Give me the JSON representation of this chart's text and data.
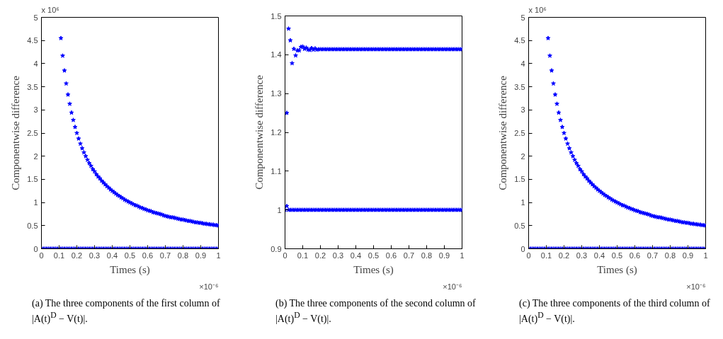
{
  "chart_data": [
    {
      "type": "scatter",
      "xlabel": "Times (s)",
      "ylabel": "Componentwise difference",
      "annotations": [
        "(a) The three components of the first column of |A(t)$^{D}$ − V(t)|.",
        "×10⁻⁶",
        "x 10⁶"
      ],
      "marker": "star",
      "grid": false,
      "xlim": [
        0,
        1
      ],
      "ylim": [
        0,
        5
      ],
      "xticks": [
        0,
        0.1,
        0.2,
        0.3,
        0.4,
        0.5,
        0.6,
        0.7,
        0.8,
        0.9,
        1
      ],
      "yticks": [
        0,
        0.5,
        1,
        1.5,
        2,
        2.5,
        3,
        3.5,
        4,
        4.5,
        5
      ],
      "x": [
        0,
        0.01,
        0.02,
        0.03,
        0.04,
        0.05,
        0.06,
        0.07,
        0.08,
        0.09,
        0.1,
        0.11,
        0.12,
        0.13,
        0.14,
        0.15,
        0.16,
        0.17,
        0.18,
        0.19,
        0.2,
        0.21,
        0.22,
        0.23,
        0.24,
        0.25,
        0.26,
        0.27,
        0.28,
        0.29,
        0.3,
        0.31,
        0.32,
        0.33,
        0.34,
        0.35,
        0.36,
        0.37,
        0.38,
        0.39,
        0.4,
        0.41,
        0.42,
        0.43,
        0.44,
        0.45,
        0.46,
        0.47,
        0.48,
        0.49,
        0.5,
        0.51,
        0.52,
        0.53,
        0.54,
        0.55,
        0.56,
        0.57,
        0.58,
        0.59,
        0.6,
        0.61,
        0.62,
        0.63,
        0.64,
        0.65,
        0.66,
        0.67,
        0.68,
        0.69,
        0.7,
        0.71,
        0.72,
        0.73,
        0.74,
        0.75,
        0.76,
        0.77,
        0.78,
        0.79,
        0.8,
        0.81,
        0.82,
        0.83,
        0.84,
        0.85,
        0.86,
        0.87,
        0.88,
        0.89,
        0.9,
        0.91,
        0.92,
        0.93,
        0.94,
        0.95,
        0.96,
        0.97,
        0.98,
        0.99,
        1
      ],
      "series": [
        {
          "color": "#0000ff",
          "values": [
            0,
            0,
            0,
            0,
            0,
            0,
            0,
            0,
            0,
            0,
            0,
            0,
            0,
            0,
            0,
            0,
            0,
            0,
            0,
            0,
            0,
            0,
            0,
            0,
            0,
            0,
            0,
            0,
            0,
            0,
            0,
            0,
            0,
            0,
            0,
            0,
            0,
            0,
            0,
            0,
            0,
            0,
            0,
            0,
            0,
            0,
            0,
            0,
            0,
            0,
            0,
            0,
            0,
            0,
            0,
            0,
            0,
            0,
            0,
            0,
            0,
            0,
            0,
            0,
            0,
            0,
            0,
            0,
            0,
            0,
            0,
            0,
            0,
            0,
            0,
            0,
            0,
            0,
            0,
            0,
            0,
            0,
            0,
            0,
            0,
            0,
            0,
            0,
            0,
            0,
            0,
            0,
            0,
            0,
            0,
            0,
            0,
            0,
            0,
            0,
            0
          ]
        },
        {
          "color": "#0000ff",
          "values": [
            null,
            null,
            null,
            null,
            null,
            null,
            null,
            null,
            null,
            null,
            null,
            4.55,
            4.17,
            3.85,
            3.57,
            3.33,
            3.13,
            2.94,
            2.78,
            2.63,
            2.5,
            2.38,
            2.27,
            2.17,
            2.08,
            2,
            1.92,
            1.85,
            1.79,
            1.72,
            1.67,
            1.61,
            1.56,
            1.52,
            1.47,
            1.43,
            1.39,
            1.35,
            1.32,
            1.28,
            1.25,
            1.22,
            1.19,
            1.16,
            1.14,
            1.11,
            1.09,
            1.06,
            1.04,
            1.02,
            1,
            0.98,
            0.96,
            0.94,
            0.93,
            0.91,
            0.89,
            0.88,
            0.86,
            0.85,
            0.83,
            0.82,
            0.81,
            0.79,
            0.78,
            0.77,
            0.76,
            0.75,
            0.74,
            0.72,
            0.71,
            0.7,
            0.69,
            0.68,
            0.68,
            0.67,
            0.66,
            0.65,
            0.64,
            0.63,
            0.63,
            0.62,
            0.61,
            0.6,
            0.6,
            0.59,
            0.58,
            0.57,
            0.57,
            0.56,
            0.56,
            0.55,
            0.54,
            0.54,
            0.53,
            0.53,
            0.52,
            0.52,
            0.51,
            0.51,
            0.5
          ]
        }
      ]
    },
    {
      "type": "scatter",
      "xlabel": "Times (s)",
      "ylabel": "Componentwise difference",
      "annotations": [
        "(b) The three components of the second column of |A(t)$^{D}$ − V(t)|.",
        "×10⁻⁶"
      ],
      "marker": "star",
      "grid": false,
      "xlim": [
        0,
        1
      ],
      "ylim": [
        0.9,
        1.5
      ],
      "xticks": [
        0,
        0.1,
        0.2,
        0.3,
        0.4,
        0.5,
        0.6,
        0.7,
        0.8,
        0.9,
        1
      ],
      "yticks": [
        0.9,
        1,
        1.1,
        1.2,
        1.3,
        1.4,
        1.5
      ],
      "x": [
        0,
        0.01,
        0.02,
        0.03,
        0.04,
        0.05,
        0.06,
        0.07,
        0.08,
        0.09,
        0.1,
        0.11,
        0.12,
        0.13,
        0.14,
        0.15,
        0.16,
        0.17,
        0.18,
        0.19,
        0.2,
        0.21,
        0.22,
        0.23,
        0.24,
        0.25,
        0.26,
        0.27,
        0.28,
        0.29,
        0.3,
        0.31,
        0.32,
        0.33,
        0.34,
        0.35,
        0.36,
        0.37,
        0.38,
        0.39,
        0.4,
        0.41,
        0.42,
        0.43,
        0.44,
        0.45,
        0.46,
        0.47,
        0.48,
        0.49,
        0.5,
        0.51,
        0.52,
        0.53,
        0.54,
        0.55,
        0.56,
        0.57,
        0.58,
        0.59,
        0.6,
        0.61,
        0.62,
        0.63,
        0.64,
        0.65,
        0.66,
        0.67,
        0.68,
        0.69,
        0.7,
        0.71,
        0.72,
        0.73,
        0.74,
        0.75,
        0.76,
        0.77,
        0.78,
        0.79,
        0.8,
        0.81,
        0.82,
        0.83,
        0.84,
        0.85,
        0.86,
        0.87,
        0.88,
        0.89,
        0.9,
        0.91,
        0.92,
        0.93,
        0.94,
        0.95,
        0.96,
        0.97,
        0.98,
        0.99,
        1
      ],
      "series": [
        {
          "color": "#0000ff",
          "values": [
            1,
            1.01,
            1,
            1,
            1,
            1,
            1,
            1,
            1,
            1,
            1,
            1,
            1,
            1,
            1,
            1,
            1,
            1,
            1,
            1,
            1,
            1,
            1,
            1,
            1,
            1,
            1,
            1,
            1,
            1,
            1,
            1,
            1,
            1,
            1,
            1,
            1,
            1,
            1,
            1,
            1,
            1,
            1,
            1,
            1,
            1,
            1,
            1,
            1,
            1,
            1,
            1,
            1,
            1,
            1,
            1,
            1,
            1,
            1,
            1,
            1,
            1,
            1,
            1,
            1,
            1,
            1,
            1,
            1,
            1,
            1,
            1,
            1,
            1,
            1,
            1,
            1,
            1,
            1,
            1,
            1,
            1,
            1,
            1,
            1,
            1,
            1,
            1,
            1,
            1,
            1,
            1,
            1,
            1,
            1,
            1,
            1,
            1,
            1,
            1,
            1
          ]
        },
        {
          "color": "#0000ff",
          "values": [
            null,
            1.25,
            1.467,
            1.437,
            1.378,
            1.415,
            1.398,
            1.411,
            1.411,
            1.42,
            1.421,
            1.415,
            1.418,
            1.413,
            1.412,
            1.417,
            1.413,
            1.416,
            1.413,
            1.414,
            1.414,
            1.414,
            1.414,
            1.414,
            1.414,
            1.414,
            1.414,
            1.414,
            1.414,
            1.414,
            1.414,
            1.414,
            1.414,
            1.414,
            1.414,
            1.414,
            1.414,
            1.414,
            1.414,
            1.414,
            1.414,
            1.414,
            1.414,
            1.414,
            1.414,
            1.414,
            1.414,
            1.414,
            1.414,
            1.414,
            1.414,
            1.414,
            1.414,
            1.414,
            1.414,
            1.414,
            1.414,
            1.414,
            1.414,
            1.414,
            1.414,
            1.414,
            1.414,
            1.414,
            1.414,
            1.414,
            1.414,
            1.414,
            1.414,
            1.414,
            1.414,
            1.414,
            1.414,
            1.414,
            1.414,
            1.414,
            1.414,
            1.414,
            1.414,
            1.414,
            1.414,
            1.414,
            1.414,
            1.414,
            1.414,
            1.414,
            1.414,
            1.414,
            1.414,
            1.414,
            1.414,
            1.414,
            1.414,
            1.414,
            1.414,
            1.414,
            1.414,
            1.414,
            1.414,
            1.414,
            1.414
          ]
        }
      ]
    },
    {
      "type": "scatter",
      "xlabel": "Times (s)",
      "ylabel": "Componentwise difference",
      "annotations": [
        "(c) The three components of the third column of |A(t)$^{D}$ − V(t)|.",
        "×10⁻⁶",
        "x 10⁶"
      ],
      "marker": "star",
      "grid": false,
      "xlim": [
        0,
        1
      ],
      "ylim": [
        0,
        5
      ],
      "xticks": [
        0,
        0.1,
        0.2,
        0.3,
        0.4,
        0.5,
        0.6,
        0.7,
        0.8,
        0.9,
        1
      ],
      "yticks": [
        0,
        0.5,
        1,
        1.5,
        2,
        2.5,
        3,
        3.5,
        4,
        4.5,
        5
      ],
      "x": [
        0,
        0.01,
        0.02,
        0.03,
        0.04,
        0.05,
        0.06,
        0.07,
        0.08,
        0.09,
        0.1,
        0.11,
        0.12,
        0.13,
        0.14,
        0.15,
        0.16,
        0.17,
        0.18,
        0.19,
        0.2,
        0.21,
        0.22,
        0.23,
        0.24,
        0.25,
        0.26,
        0.27,
        0.28,
        0.29,
        0.3,
        0.31,
        0.32,
        0.33,
        0.34,
        0.35,
        0.36,
        0.37,
        0.38,
        0.39,
        0.4,
        0.41,
        0.42,
        0.43,
        0.44,
        0.45,
        0.46,
        0.47,
        0.48,
        0.49,
        0.5,
        0.51,
        0.52,
        0.53,
        0.54,
        0.55,
        0.56,
        0.57,
        0.58,
        0.59,
        0.6,
        0.61,
        0.62,
        0.63,
        0.64,
        0.65,
        0.66,
        0.67,
        0.68,
        0.69,
        0.7,
        0.71,
        0.72,
        0.73,
        0.74,
        0.75,
        0.76,
        0.77,
        0.78,
        0.79,
        0.8,
        0.81,
        0.82,
        0.83,
        0.84,
        0.85,
        0.86,
        0.87,
        0.88,
        0.89,
        0.9,
        0.91,
        0.92,
        0.93,
        0.94,
        0.95,
        0.96,
        0.97,
        0.98,
        0.99,
        1
      ],
      "series": [
        {
          "color": "#0000ff",
          "values": [
            0,
            0,
            0,
            0,
            0,
            0,
            0,
            0,
            0,
            0,
            0,
            0,
            0,
            0,
            0,
            0,
            0,
            0,
            0,
            0,
            0,
            0,
            0,
            0,
            0,
            0,
            0,
            0,
            0,
            0,
            0,
            0,
            0,
            0,
            0,
            0,
            0,
            0,
            0,
            0,
            0,
            0,
            0,
            0,
            0,
            0,
            0,
            0,
            0,
            0,
            0,
            0,
            0,
            0,
            0,
            0,
            0,
            0,
            0,
            0,
            0,
            0,
            0,
            0,
            0,
            0,
            0,
            0,
            0,
            0,
            0,
            0,
            0,
            0,
            0,
            0,
            0,
            0,
            0,
            0,
            0,
            0,
            0,
            0,
            0,
            0,
            0,
            0,
            0,
            0,
            0,
            0,
            0,
            0,
            0,
            0,
            0,
            0,
            0,
            0,
            0
          ]
        },
        {
          "color": "#0000ff",
          "values": [
            null,
            null,
            null,
            null,
            null,
            null,
            null,
            null,
            null,
            null,
            null,
            4.55,
            4.17,
            3.85,
            3.57,
            3.33,
            3.13,
            2.94,
            2.78,
            2.63,
            2.5,
            2.38,
            2.27,
            2.17,
            2.08,
            2,
            1.92,
            1.85,
            1.79,
            1.72,
            1.67,
            1.61,
            1.56,
            1.52,
            1.47,
            1.43,
            1.39,
            1.35,
            1.32,
            1.28,
            1.25,
            1.22,
            1.19,
            1.16,
            1.14,
            1.11,
            1.09,
            1.06,
            1.04,
            1.02,
            1,
            0.98,
            0.96,
            0.94,
            0.93,
            0.91,
            0.89,
            0.88,
            0.86,
            0.85,
            0.83,
            0.82,
            0.81,
            0.79,
            0.78,
            0.77,
            0.76,
            0.75,
            0.74,
            0.72,
            0.71,
            0.7,
            0.69,
            0.68,
            0.68,
            0.67,
            0.66,
            0.65,
            0.64,
            0.63,
            0.63,
            0.62,
            0.61,
            0.6,
            0.6,
            0.59,
            0.58,
            0.57,
            0.57,
            0.56,
            0.56,
            0.55,
            0.54,
            0.54,
            0.53,
            0.53,
            0.52,
            0.52,
            0.51,
            0.51,
            0.5
          ]
        }
      ]
    }
  ]
}
